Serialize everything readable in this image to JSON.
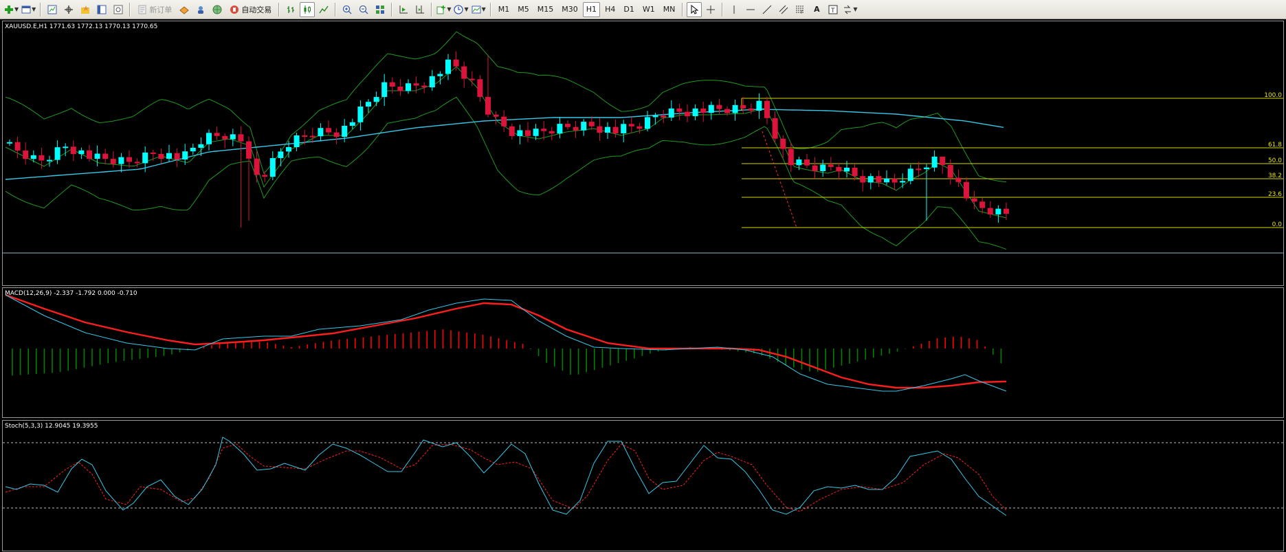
{
  "toolbar": {
    "new_order_label": "新订单",
    "auto_trade_label": "自动交易",
    "timeframes": [
      "M1",
      "M5",
      "M15",
      "M30",
      "H1",
      "H4",
      "D1",
      "W1",
      "MN"
    ],
    "active_timeframe": "H1",
    "text_tool_label": "A",
    "text_label_tool_label": "T"
  },
  "main_chart": {
    "label": "XAUUSD.E,H1  1771.63 1772.13 1770.13 1770.65",
    "bull_color": "#00ffff",
    "bear_color": "#dc143c",
    "fib_levels": [
      "100.0",
      "61.8",
      "50.0",
      "38.2",
      "23.6",
      "0.0"
    ]
  },
  "macd": {
    "label": "MACD(12,26,9) -2.337 -1.792 0.000 -0.710",
    "hist_pos_color": "#ff0000",
    "hist_neg_color": "#008000"
  },
  "stoch": {
    "label": "Stoch(5,3,3) 12.9045 19.3955"
  }
}
